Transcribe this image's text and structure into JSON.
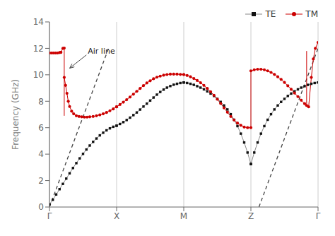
{
  "chart_data": {
    "type": "line",
    "ylabel": "Frequency (GHz)",
    "xlim": [
      0,
      4
    ],
    "xticks": [
      {
        "value": 0,
        "label": "Γ"
      },
      {
        "value": 1,
        "label": "X"
      },
      {
        "value": 2,
        "label": "M"
      },
      {
        "value": 3,
        "label": "Z"
      },
      {
        "value": 4,
        "label": "Γ"
      }
    ],
    "ylim": [
      0,
      14
    ],
    "yticks": [
      0,
      2,
      4,
      6,
      8,
      10,
      12,
      14
    ],
    "grid": "x",
    "legend": "upper right",
    "series": [
      {
        "name": "TE",
        "color": "#111111",
        "marker": "square",
        "x": [
          0.0,
          0.05,
          0.1,
          0.15,
          0.2,
          0.25,
          0.3,
          0.35,
          0.4,
          0.45,
          0.5,
          0.55,
          0.6,
          0.65,
          0.7,
          0.75,
          0.8,
          0.85,
          0.9,
          0.95,
          1.0,
          1.0,
          1.05,
          1.1,
          1.15,
          1.2,
          1.25,
          1.3,
          1.35,
          1.4,
          1.45,
          1.5,
          1.55,
          1.6,
          1.65,
          1.7,
          1.75,
          1.8,
          1.85,
          1.9,
          1.95,
          2.0,
          2.0,
          2.05,
          2.1,
          2.15,
          2.2,
          2.25,
          2.3,
          2.35,
          2.4,
          2.45,
          2.5,
          2.55,
          2.6,
          2.65,
          2.7,
          2.75,
          2.8,
          2.85,
          2.9,
          2.95,
          3.0,
          3.0,
          3.05,
          3.1,
          3.15,
          3.2,
          3.25,
          3.3,
          3.35,
          3.4,
          3.45,
          3.5,
          3.55,
          3.6,
          3.65,
          3.7,
          3.75,
          3.8,
          3.85,
          3.9,
          3.95,
          4.0
        ],
        "values": [
          0.2,
          0.55,
          0.95,
          1.35,
          1.75,
          2.15,
          2.55,
          2.95,
          3.32,
          3.68,
          4.02,
          4.35,
          4.65,
          4.93,
          5.18,
          5.42,
          5.62,
          5.8,
          5.95,
          6.07,
          6.15,
          6.15,
          6.28,
          6.42,
          6.58,
          6.76,
          6.95,
          7.15,
          7.37,
          7.6,
          7.82,
          8.05,
          8.28,
          8.5,
          8.7,
          8.88,
          9.03,
          9.15,
          9.25,
          9.32,
          9.38,
          9.42,
          9.42,
          9.38,
          9.32,
          9.24,
          9.14,
          9.03,
          8.9,
          8.75,
          8.58,
          8.4,
          8.18,
          7.95,
          7.68,
          7.38,
          7.02,
          6.6,
          6.12,
          5.55,
          4.88,
          4.12,
          3.25,
          3.25,
          4.12,
          4.88,
          5.55,
          6.12,
          6.6,
          7.02,
          7.38,
          7.68,
          7.95,
          8.18,
          8.4,
          8.58,
          8.75,
          8.9,
          9.03,
          9.14,
          9.24,
          9.32,
          9.38,
          9.42
        ]
      },
      {
        "name": "TM",
        "color": "#cc0000",
        "marker": "circle",
        "x": [
          0.0,
          0.03,
          0.06,
          0.09,
          0.12,
          0.15,
          0.17
        ],
        "values": [
          11.65,
          11.65,
          11.65,
          11.65,
          11.65,
          11.68,
          11.7
        ]
      },
      {
        "name": "TM",
        "color": "#cc0000",
        "marker": "circle",
        "x": [
          0.17,
          0.2,
          0.22
        ],
        "values": [
          11.7,
          12.0,
          12.02
        ]
      },
      {
        "name": "TM",
        "color": "#cc0000",
        "marker": "none",
        "x": [
          0.22,
          0.22
        ],
        "values": [
          6.9,
          12.02
        ]
      },
      {
        "name": "TM",
        "color": "#cc0000",
        "marker": "circle",
        "x": [
          0.22,
          0.24,
          0.26,
          0.28,
          0.3,
          0.33,
          0.36,
          0.4,
          0.44,
          0.48,
          0.52,
          0.56,
          0.6,
          0.65,
          0.7,
          0.75,
          0.8,
          0.85,
          0.9,
          0.95,
          1.0
        ],
        "values": [
          9.8,
          9.2,
          8.6,
          8.0,
          7.6,
          7.25,
          7.05,
          6.9,
          6.85,
          6.82,
          6.8,
          6.8,
          6.82,
          6.85,
          6.9,
          6.97,
          7.05,
          7.15,
          7.28,
          7.42,
          7.58
        ]
      },
      {
        "name": "TM",
        "color": "#cc0000",
        "marker": "circle",
        "x": [
          1.0,
          1.05,
          1.1,
          1.15,
          1.2,
          1.25,
          1.3,
          1.35,
          1.4,
          1.45,
          1.5,
          1.55,
          1.6,
          1.65,
          1.7,
          1.75,
          1.8,
          1.85,
          1.9,
          1.95,
          2.0
        ],
        "values": [
          7.58,
          7.75,
          7.93,
          8.12,
          8.32,
          8.53,
          8.75,
          8.97,
          9.18,
          9.38,
          9.55,
          9.7,
          9.82,
          9.9,
          9.97,
          10.02,
          10.05,
          10.05,
          10.05,
          10.03,
          10.02
        ]
      },
      {
        "name": "TM",
        "color": "#cc0000",
        "marker": "circle",
        "x": [
          2.0,
          2.05,
          2.1,
          2.15,
          2.2,
          2.25,
          2.3,
          2.35,
          2.4,
          2.45,
          2.5,
          2.55,
          2.6,
          2.65,
          2.7,
          2.75,
          2.8,
          2.85,
          2.9,
          2.95,
          3.0
        ],
        "values": [
          10.02,
          9.95,
          9.85,
          9.72,
          9.57,
          9.4,
          9.2,
          8.97,
          8.72,
          8.45,
          8.15,
          7.83,
          7.5,
          7.17,
          6.85,
          6.58,
          6.35,
          6.18,
          6.05,
          6.0,
          6.0
        ]
      },
      {
        "name": "TM",
        "color": "#cc0000",
        "marker": "none",
        "x": [
          3.0,
          3.0
        ],
        "values": [
          6.0,
          10.3
        ]
      },
      {
        "name": "TM",
        "color": "#cc0000",
        "marker": "circle",
        "x": [
          3.0,
          3.05,
          3.1,
          3.15,
          3.2,
          3.25,
          3.3,
          3.35,
          3.4,
          3.45,
          3.5,
          3.55,
          3.6,
          3.65,
          3.7,
          3.75,
          3.8,
          3.83,
          3.86,
          3.9,
          3.93,
          3.96,
          4.0
        ],
        "values": [
          10.3,
          10.38,
          10.42,
          10.42,
          10.38,
          10.3,
          10.18,
          10.03,
          9.85,
          9.65,
          9.42,
          9.17,
          8.9,
          8.62,
          8.35,
          8.08,
          7.82,
          7.68,
          7.58,
          9.8,
          11.2,
          12.0,
          12.45
        ]
      },
      {
        "name": "TM",
        "color": "#cc0000",
        "marker": "none",
        "x": [
          3.83,
          3.83
        ],
        "values": [
          7.68,
          11.8
        ]
      }
    ],
    "air_lines": {
      "color": "#444444",
      "line_style": "dashed",
      "segments": [
        {
          "x": [
            0.0,
            0.88
          ],
          "values": [
            0.0,
            12.0
          ]
        },
        {
          "x": [
            3.12,
            4.0
          ],
          "values": [
            0.0,
            12.0
          ]
        }
      ]
    },
    "annotations": [
      {
        "text": "Air line",
        "x": 0.55,
        "y": 11.5,
        "arrow_to": [
          0.3,
          10.5
        ]
      }
    ]
  }
}
